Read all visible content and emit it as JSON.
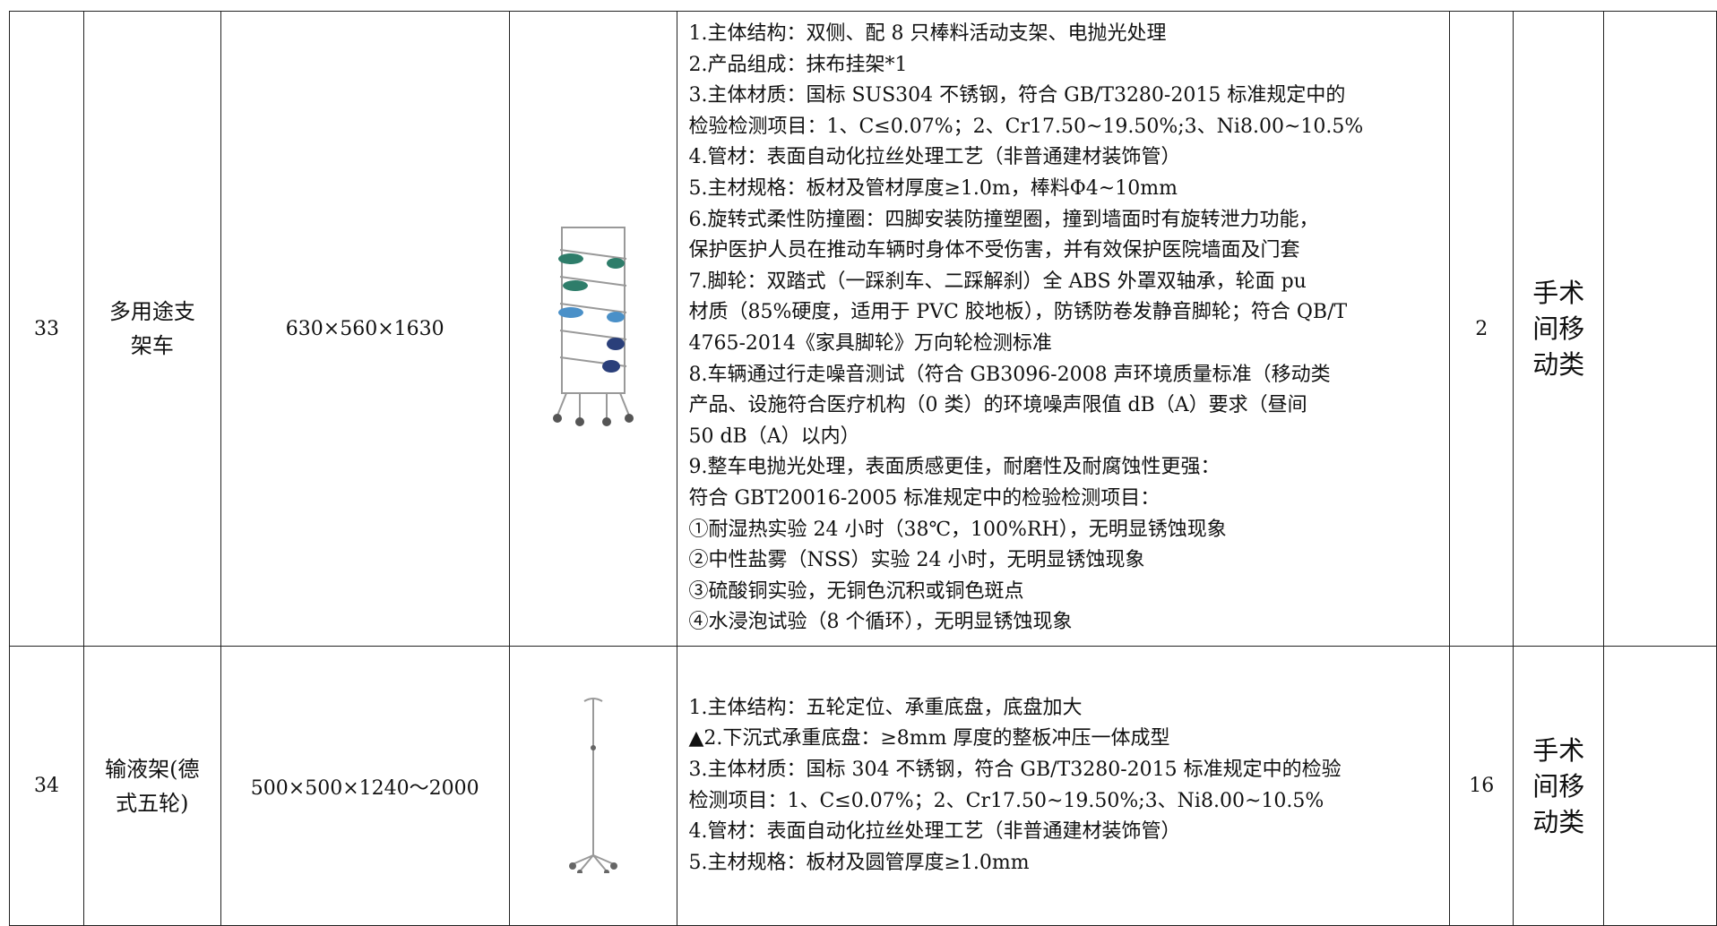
{
  "table": {
    "rows": [
      {
        "no": "33",
        "name": "多用途支架车",
        "size": "630×560×1630",
        "desc": [
          "1.主体结构：双侧、配 8 只棒料活动支架、电抛光处理",
          "2.产品组成：抹布挂架*1",
          "3.主体材质：国标 SUS304 不锈钢，符合 GB/T3280-2015 标准规定中的",
          "检验检测项目：1、C≤0.07%；2、Cr17.50~19.50%;3、Ni8.00~10.5%",
          "4.管材：表面自动化拉丝处理工艺（非普通建材装饰管）",
          "5.主材规格：板材及管材厚度≥1.0m，棒料Φ4~10mm",
          "6.旋转式柔性防撞圈：四脚安装防撞塑圈，撞到墙面时有旋转泄力功能，",
          "保护医护人员在推动车辆时身体不受伤害，并有效保护医院墙面及门套",
          "7.脚轮：双踏式（一踩刹车、二踩解刹）全 ABS 外罩双轴承，轮面 pu",
          "材质（85%硬度，适用于 PVC 胶地板），防锈防卷发静音脚轮；符合 QB/T",
          "4765-2014《家具脚轮》万向轮检测标准",
          "8.车辆通过行走噪音测试（符合 GB3096-2008 声环境质量标准（移动类",
          "产品、设施符合医疗机构（0 类）的环境噪声限值 dB（A）要求（昼间",
          "50 dB（A）以内）",
          "9.整车电抛光处理，表面质感更佳，耐磨性及耐腐蚀性更强：",
          "符合 GBT20016-2005 标准规定中的检验检测项目：",
          "①耐湿热实验 24 小时（38℃，100%RH），无明显锈蚀现象",
          "②中性盐雾（NSS）实验 24 小时，无明显锈蚀现象",
          "③硫酸铜实验，无铜色沉积或铜色斑点",
          "④水浸泡试验（8 个循环），无明显锈蚀现象"
        ],
        "qty": "2",
        "category": "手术间移动类"
      },
      {
        "no": "34",
        "name": "输液架(德式五轮)",
        "size": "500×500×1240～2000",
        "desc": [
          "1.主体结构：五轮定位、承重底盘，底盘加大",
          "▲2.下沉式承重底盘：≥8mm 厚度的整板冲压一体成型",
          "3.主体材质：国标 304 不锈钢，符合 GB/T3280-2015 标准规定中的检验",
          "检测项目：1、C≤0.07%；2、Cr17.50~19.50%;3、Ni8.00~10.5%",
          "4.管材：表面自动化拉丝处理工艺（非普通建材装饰管）",
          "5.主材规格：板材及圆管厚度≥1.0mm"
        ],
        "qty": "16",
        "category": "手术间移动类"
      }
    ]
  }
}
